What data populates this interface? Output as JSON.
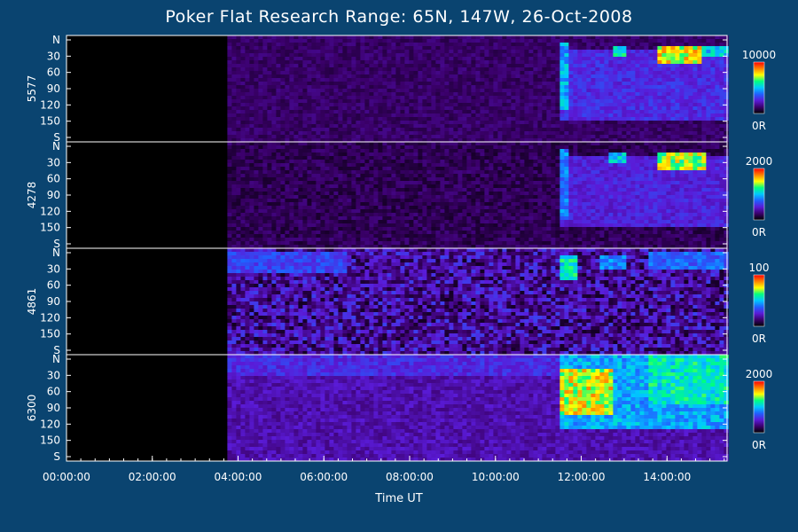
{
  "chart_data": {
    "type": "heatmap",
    "title": "Poker Flat Research Range: 65N, 147W, 26-Oct-2008",
    "xlabel": "Time UT",
    "x_tick_labels": [
      "00:00:00",
      "02:00:00",
      "04:00:00",
      "06:00:00",
      "08:00:00",
      "10:00:00",
      "12:00:00",
      "14:00:00"
    ],
    "x_tick_hours": [
      0,
      2,
      4,
      6,
      8,
      10,
      12,
      14
    ],
    "x_range_hours": [
      0,
      15.4
    ],
    "data_start_hour": 3.75,
    "colormap": [
      "#000000",
      "#3b006b",
      "#5a1bd8",
      "#2060ff",
      "#00c8ff",
      "#00ff80",
      "#ffff00",
      "#ff8000",
      "#ff0000"
    ],
    "panels": [
      {
        "wavelength": "5577",
        "y_tick_labels": [
          "N",
          "30",
          "60",
          "90",
          "120",
          "150",
          "S"
        ],
        "colorbar_max": "10000",
        "colorbar_min": "0R",
        "base_level": 0.12,
        "noise": 0.04,
        "events": [
          {
            "t": [
              11.4,
              15.4
            ],
            "el": [
              20,
              140
            ],
            "level": 0.3
          },
          {
            "t": [
              11.45,
              11.65
            ],
            "el": [
              10,
              120
            ],
            "level": 0.5
          },
          {
            "t": [
              12.7,
              13.0
            ],
            "el": [
              15,
              35
            ],
            "level": 0.6
          },
          {
            "t": [
              13.7,
              14.8
            ],
            "el": [
              15,
              45
            ],
            "level": 0.8
          },
          {
            "t": [
              14.7,
              15.4
            ],
            "el": [
              15,
              35
            ],
            "level": 0.55
          }
        ]
      },
      {
        "wavelength": "4278",
        "y_tick_labels": [
          "N",
          "30",
          "60",
          "90",
          "120",
          "150",
          "S"
        ],
        "colorbar_max": "2000",
        "colorbar_min": "0R",
        "base_level": 0.1,
        "noise": 0.05,
        "events": [
          {
            "t": [
              11.4,
              15.4
            ],
            "el": [
              20,
              140
            ],
            "level": 0.28
          },
          {
            "t": [
              11.45,
              11.7
            ],
            "el": [
              10,
              130
            ],
            "level": 0.45
          },
          {
            "t": [
              12.6,
              13.0
            ],
            "el": [
              15,
              35
            ],
            "level": 0.55
          },
          {
            "t": [
              13.7,
              14.9
            ],
            "el": [
              15,
              45
            ],
            "level": 0.75
          }
        ]
      },
      {
        "wavelength": "4861",
        "y_tick_labels": [
          "N",
          "30",
          "60",
          "90",
          "120",
          "150",
          "S"
        ],
        "colorbar_max": "100",
        "colorbar_min": "0R",
        "base_level": 0.18,
        "noise": 0.14,
        "events": [
          {
            "t": [
              3.75,
              6.5
            ],
            "el": [
              5,
              40
            ],
            "level": 0.35
          },
          {
            "t": [
              11.5,
              11.9
            ],
            "el": [
              10,
              50
            ],
            "level": 0.6
          },
          {
            "t": [
              12.4,
              13.0
            ],
            "el": [
              10,
              30
            ],
            "level": 0.45
          },
          {
            "t": [
              13.5,
              15.4
            ],
            "el": [
              5,
              30
            ],
            "level": 0.4
          }
        ]
      },
      {
        "wavelength": "6300",
        "y_tick_labels": [
          "N",
          "30",
          "60",
          "90",
          "120",
          "150",
          "S"
        ],
        "colorbar_max": "2000",
        "colorbar_min": "0R",
        "base_level": 0.2,
        "noise": 0.05,
        "events": [
          {
            "t": [
              3.75,
              11.4
            ],
            "el": [
              0,
              30
            ],
            "level": 0.3
          },
          {
            "t": [
              11.4,
              15.4
            ],
            "el": [
              0,
              120
            ],
            "level": 0.5
          },
          {
            "t": [
              11.45,
              12.7
            ],
            "el": [
              20,
              100
            ],
            "level": 0.8
          },
          {
            "t": [
              12.0,
              12.6
            ],
            "el": [
              20,
              60
            ],
            "level": 0.7
          },
          {
            "t": [
              13.5,
              15.4
            ],
            "el": [
              0,
              80
            ],
            "level": 0.6
          }
        ]
      }
    ]
  }
}
